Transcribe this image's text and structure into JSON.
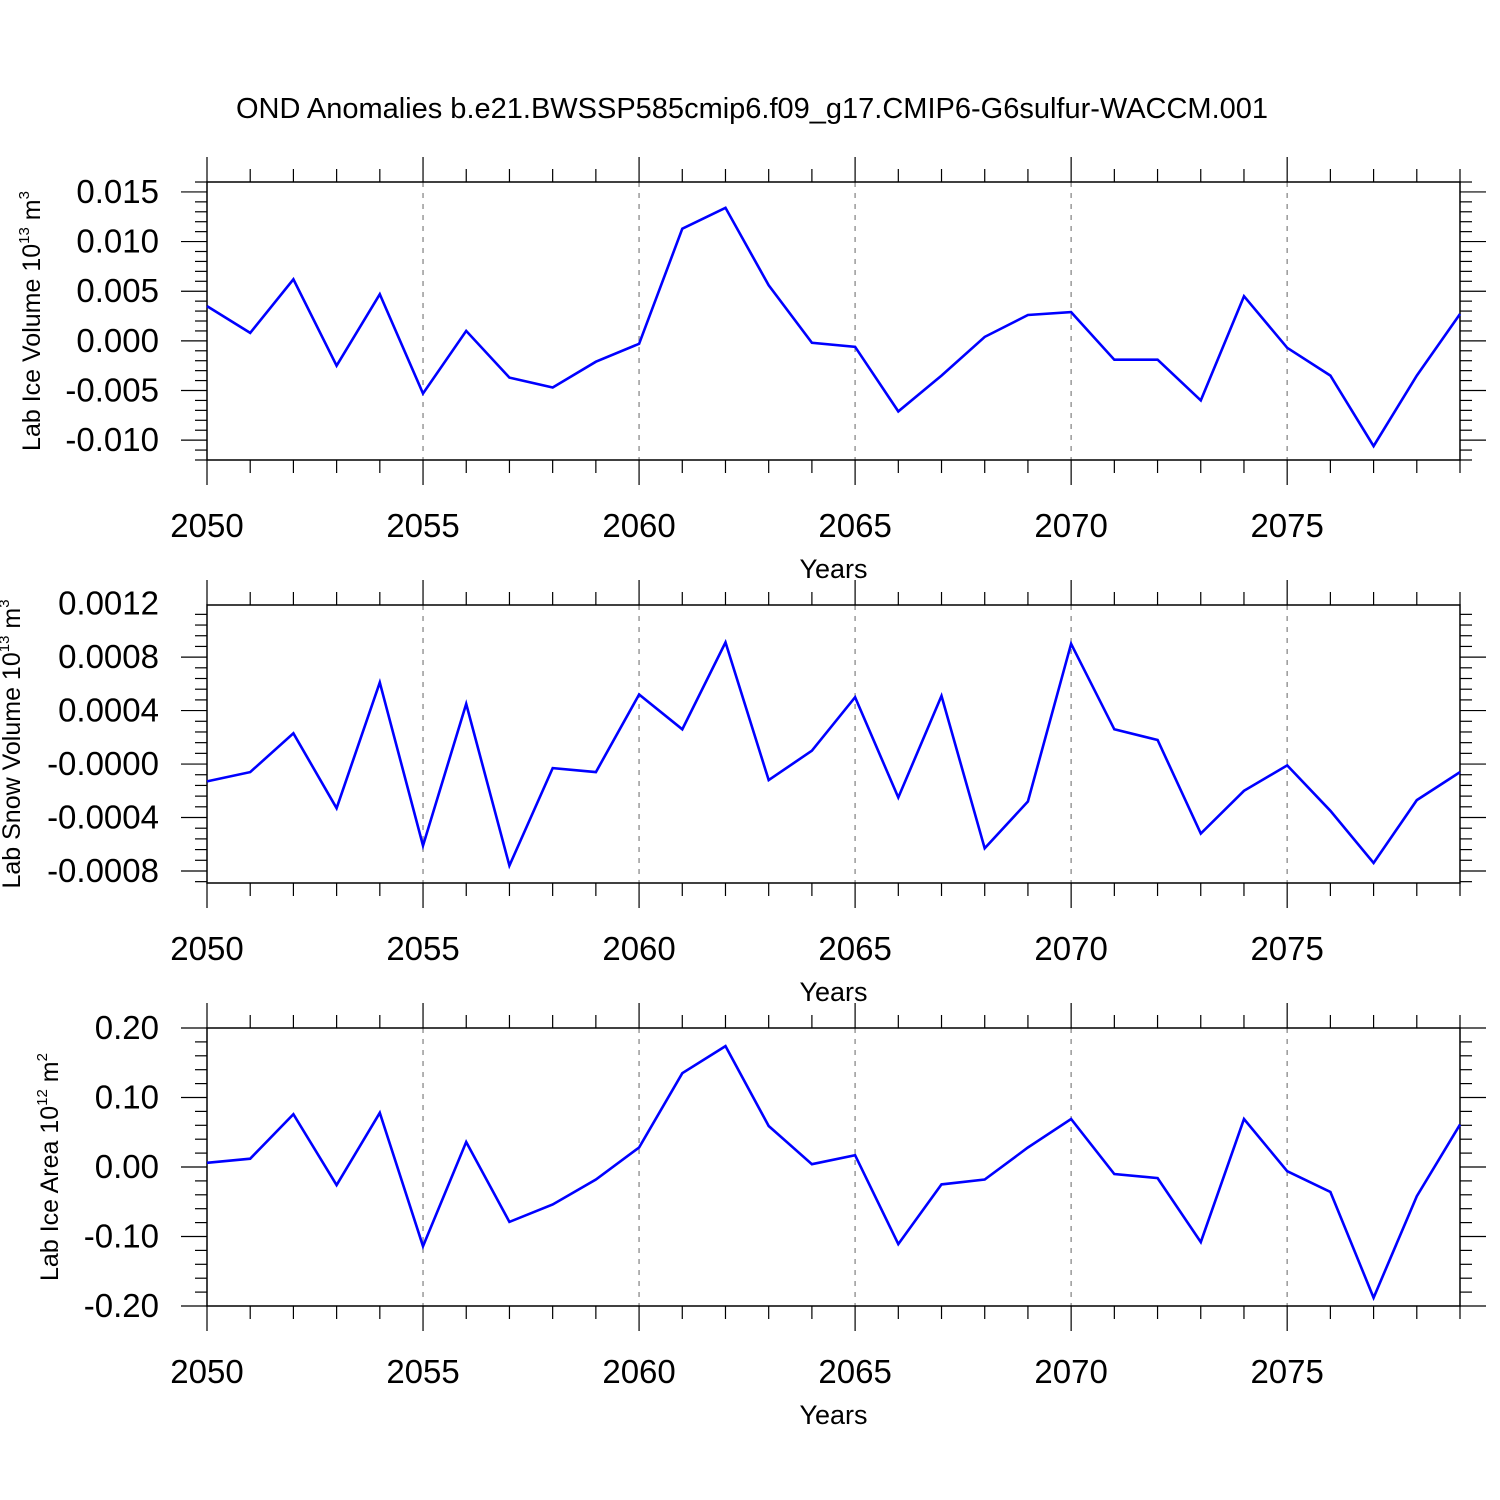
{
  "title": "OND Anomalies b.e21.BWSSP585cmip6.f09_g17.CMIP6-G6sulfur-WACCM.001",
  "line_color": "#0000ff",
  "grid_color": "#999999",
  "chart_data": [
    {
      "type": "line",
      "ylabel_main": "Lab Ice Volume 10",
      "ylabel_exp": "13",
      "ylabel_unit": " m",
      "ylabel_unit_exp": "3",
      "xlabel": "Years",
      "xlim": [
        2050,
        2079
      ],
      "ylim": [
        -0.012,
        0.016
      ],
      "yticks": [
        -0.01,
        -0.005,
        0.0,
        0.005,
        0.01,
        0.015
      ],
      "ytick_labels": [
        "-0.010",
        "-0.005",
        "0.000",
        "0.005",
        "0.010",
        "0.015"
      ],
      "xticks": [
        2050,
        2055,
        2060,
        2065,
        2070,
        2075
      ],
      "xtick_labels": [
        "2050",
        "2055",
        "2060",
        "2065",
        "2070",
        "2075"
      ],
      "grid": "vertical dashed at major x ticks",
      "x": [
        2050,
        2051,
        2052,
        2053,
        2054,
        2055,
        2056,
        2057,
        2058,
        2059,
        2060,
        2061,
        2062,
        2063,
        2064,
        2065,
        2066,
        2067,
        2068,
        2069,
        2070,
        2071,
        2072,
        2073,
        2074,
        2075,
        2076,
        2077,
        2078,
        2079
      ],
      "values": [
        0.0035,
        0.0008,
        0.0062,
        -0.0025,
        0.0047,
        -0.0053,
        0.001,
        -0.0037,
        -0.0047,
        -0.0021,
        -0.0003,
        0.0113,
        0.0134,
        0.0056,
        -0.0002,
        -0.0006,
        -0.0071,
        -0.0035,
        0.0004,
        0.0026,
        0.0029,
        -0.0019,
        -0.0019,
        -0.006,
        0.0045,
        -0.0007,
        -0.0035,
        -0.0106,
        -0.0035,
        0.0027
      ]
    },
    {
      "type": "line",
      "ylabel_main": "Lab Snow Volume 10",
      "ylabel_exp": "13",
      "ylabel_unit": " m",
      "ylabel_unit_exp": "3",
      "xlabel": "Years",
      "xlim": [
        2050,
        2079
      ],
      "ylim": [
        -0.00089,
        0.00119
      ],
      "yticks": [
        -0.0008,
        -0.0004,
        0.0,
        0.0004,
        0.0008,
        0.0012
      ],
      "ytick_labels": [
        "-0.0008",
        "-0.0004",
        "-0.0000",
        "0.0004",
        "0.0008",
        "0.0012"
      ],
      "xticks": [
        2050,
        2055,
        2060,
        2065,
        2070,
        2075
      ],
      "xtick_labels": [
        "2050",
        "2055",
        "2060",
        "2065",
        "2070",
        "2075"
      ],
      "grid": "vertical dashed at major x ticks",
      "x": [
        2050,
        2051,
        2052,
        2053,
        2054,
        2055,
        2056,
        2057,
        2058,
        2059,
        2060,
        2061,
        2062,
        2063,
        2064,
        2065,
        2066,
        2067,
        2068,
        2069,
        2070,
        2071,
        2072,
        2073,
        2074,
        2075,
        2076,
        2077,
        2078,
        2079
      ],
      "values": [
        -0.00013,
        -6e-05,
        0.00023,
        -0.00033,
        0.00061,
        -0.00061,
        0.00045,
        -0.00076,
        -3e-05,
        -6e-05,
        0.00052,
        0.00026,
        0.00091,
        -0.00012,
        0.0001,
        0.0005,
        -0.00025,
        0.00051,
        -0.00063,
        -0.00028,
        0.0009,
        0.00026,
        0.00018,
        -0.00052,
        -0.0002,
        -1e-05,
        -0.00035,
        -0.00074,
        -0.00027,
        -6e-05
      ]
    },
    {
      "type": "line",
      "ylabel_main": "Lab Ice Area 10",
      "ylabel_exp": "12",
      "ylabel_unit": " m",
      "ylabel_unit_exp": "2",
      "xlabel": "Years",
      "xlim": [
        2050,
        2079
      ],
      "ylim": [
        -0.2,
        0.2
      ],
      "yticks": [
        -0.2,
        -0.1,
        0.0,
        0.1,
        0.2
      ],
      "ytick_labels": [
        "-0.20",
        "-0.10",
        "0.00",
        "0.10",
        "0.20"
      ],
      "xticks": [
        2050,
        2055,
        2060,
        2065,
        2070,
        2075
      ],
      "xtick_labels": [
        "2050",
        "2055",
        "2060",
        "2065",
        "2070",
        "2075"
      ],
      "grid": "vertical dashed at major x ticks",
      "x": [
        2050,
        2051,
        2052,
        2053,
        2054,
        2055,
        2056,
        2057,
        2058,
        2059,
        2060,
        2061,
        2062,
        2063,
        2064,
        2065,
        2066,
        2067,
        2068,
        2069,
        2070,
        2071,
        2072,
        2073,
        2074,
        2075,
        2076,
        2077,
        2078,
        2079
      ],
      "values": [
        0.006,
        0.012,
        0.076,
        -0.026,
        0.078,
        -0.114,
        0.036,
        -0.079,
        -0.054,
        -0.018,
        0.028,
        0.135,
        0.174,
        0.059,
        0.004,
        0.017,
        -0.111,
        -0.025,
        -0.018,
        0.028,
        0.069,
        -0.01,
        -0.016,
        -0.108,
        0.069,
        -0.006,
        -0.036,
        -0.188,
        -0.042,
        0.061
      ]
    }
  ]
}
